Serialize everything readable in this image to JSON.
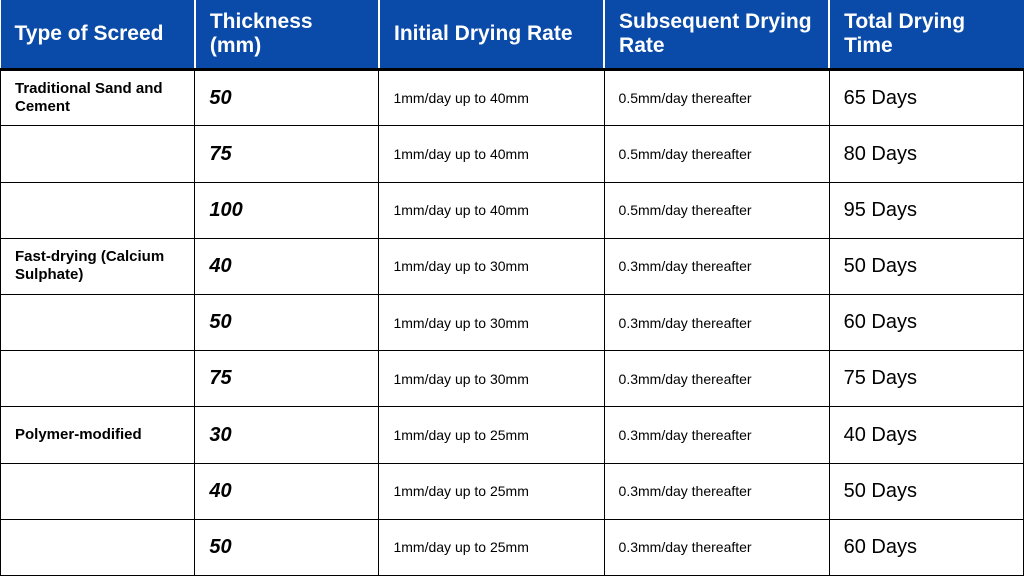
{
  "header_bg": "#0a4aa8",
  "header_fg": "#ffffff",
  "columns": [
    "Type of Screed",
    "Thickness (mm)",
    "Initial Drying Rate",
    "Subsequent Drying Rate",
    "Total Drying Time"
  ],
  "rows": [
    {
      "type": "Traditional Sand and Cement",
      "thickness": "50",
      "initial": "1mm/day up to 40mm",
      "subsequent": "0.5mm/day thereafter",
      "total": "65 Days"
    },
    {
      "type": "",
      "thickness": "75",
      "initial": "1mm/day up to 40mm",
      "subsequent": "0.5mm/day thereafter",
      "total": "80 Days"
    },
    {
      "type": "",
      "thickness": "100",
      "initial": "1mm/day up to 40mm",
      "subsequent": "0.5mm/day thereafter",
      "total": "95 Days"
    },
    {
      "type": "Fast-drying (Calcium Sulphate)",
      "thickness": "40",
      "initial": "1mm/day up to 30mm",
      "subsequent": "0.3mm/day thereafter",
      "total": "50  Days"
    },
    {
      "type": "",
      "thickness": "50",
      "initial": "1mm/day up to 30mm",
      "subsequent": "0.3mm/day thereafter",
      "total": "60 Days"
    },
    {
      "type": "",
      "thickness": "75",
      "initial": "1mm/day up to 30mm",
      "subsequent": "0.3mm/day thereafter",
      "total": "75 Days"
    },
    {
      "type": "Polymer-modified",
      "thickness": "30",
      "initial": "1mm/day up to 25mm",
      "subsequent": "0.3mm/day thereafter",
      "total": "40 Days"
    },
    {
      "type": "",
      "thickness": "40",
      "initial": "1mm/day up to 25mm",
      "subsequent": "0.3mm/day thereafter",
      "total": "50 Days"
    },
    {
      "type": "",
      "thickness": "50",
      "initial": "1mm/day up to 25mm",
      "subsequent": "0.3mm/day thereafter",
      "total": "60 Days"
    }
  ]
}
